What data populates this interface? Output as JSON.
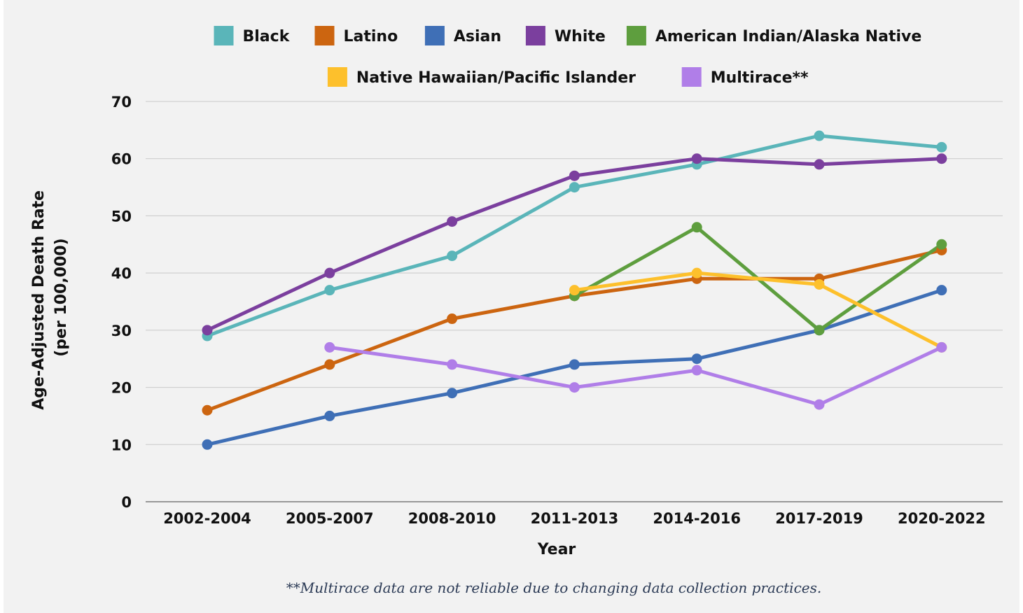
{
  "chart_data": {
    "type": "line",
    "title": "",
    "xlabel": "Year",
    "ylabel_line1": "Age-Adjusted Death Rate",
    "ylabel_line2": "(per 100,000)",
    "ylim": [
      0,
      70
    ],
    "yticks": [
      0,
      10,
      20,
      30,
      40,
      50,
      60,
      70
    ],
    "grid": true,
    "legend_position": "top",
    "categories": [
      "2002-2004",
      "2005-2007",
      "2008-2010",
      "2011-2013",
      "2014-2016",
      "2017-2019",
      "2020-2022"
    ],
    "series": [
      {
        "name": "Black",
        "color": "#5ab5b9",
        "values": [
          29,
          37,
          43,
          55,
          59,
          64,
          62
        ]
      },
      {
        "name": "Latino",
        "color": "#cc6510",
        "values": [
          16,
          24,
          32,
          36,
          39,
          39,
          44
        ]
      },
      {
        "name": "Asian",
        "color": "#3f6fb6",
        "values": [
          10,
          15,
          19,
          24,
          25,
          30,
          37
        ]
      },
      {
        "name": "White",
        "color": "#7b3f9e",
        "values": [
          30,
          40,
          49,
          57,
          60,
          59,
          60
        ]
      },
      {
        "name": "American Indian/Alaska Native",
        "color": "#5e9e3e",
        "values": [
          null,
          null,
          null,
          36,
          48,
          30,
          45
        ]
      },
      {
        "name": "Native Hawaiian/Pacific Islander",
        "color": "#fdc02c",
        "values": [
          null,
          null,
          null,
          37,
          40,
          38,
          27
        ]
      },
      {
        "name": "Multirace**",
        "color": "#b07ee8",
        "values": [
          null,
          27,
          24,
          20,
          23,
          17,
          27
        ]
      }
    ],
    "footnote": "**Multirace data are not reliable due to changing data collection practices."
  }
}
